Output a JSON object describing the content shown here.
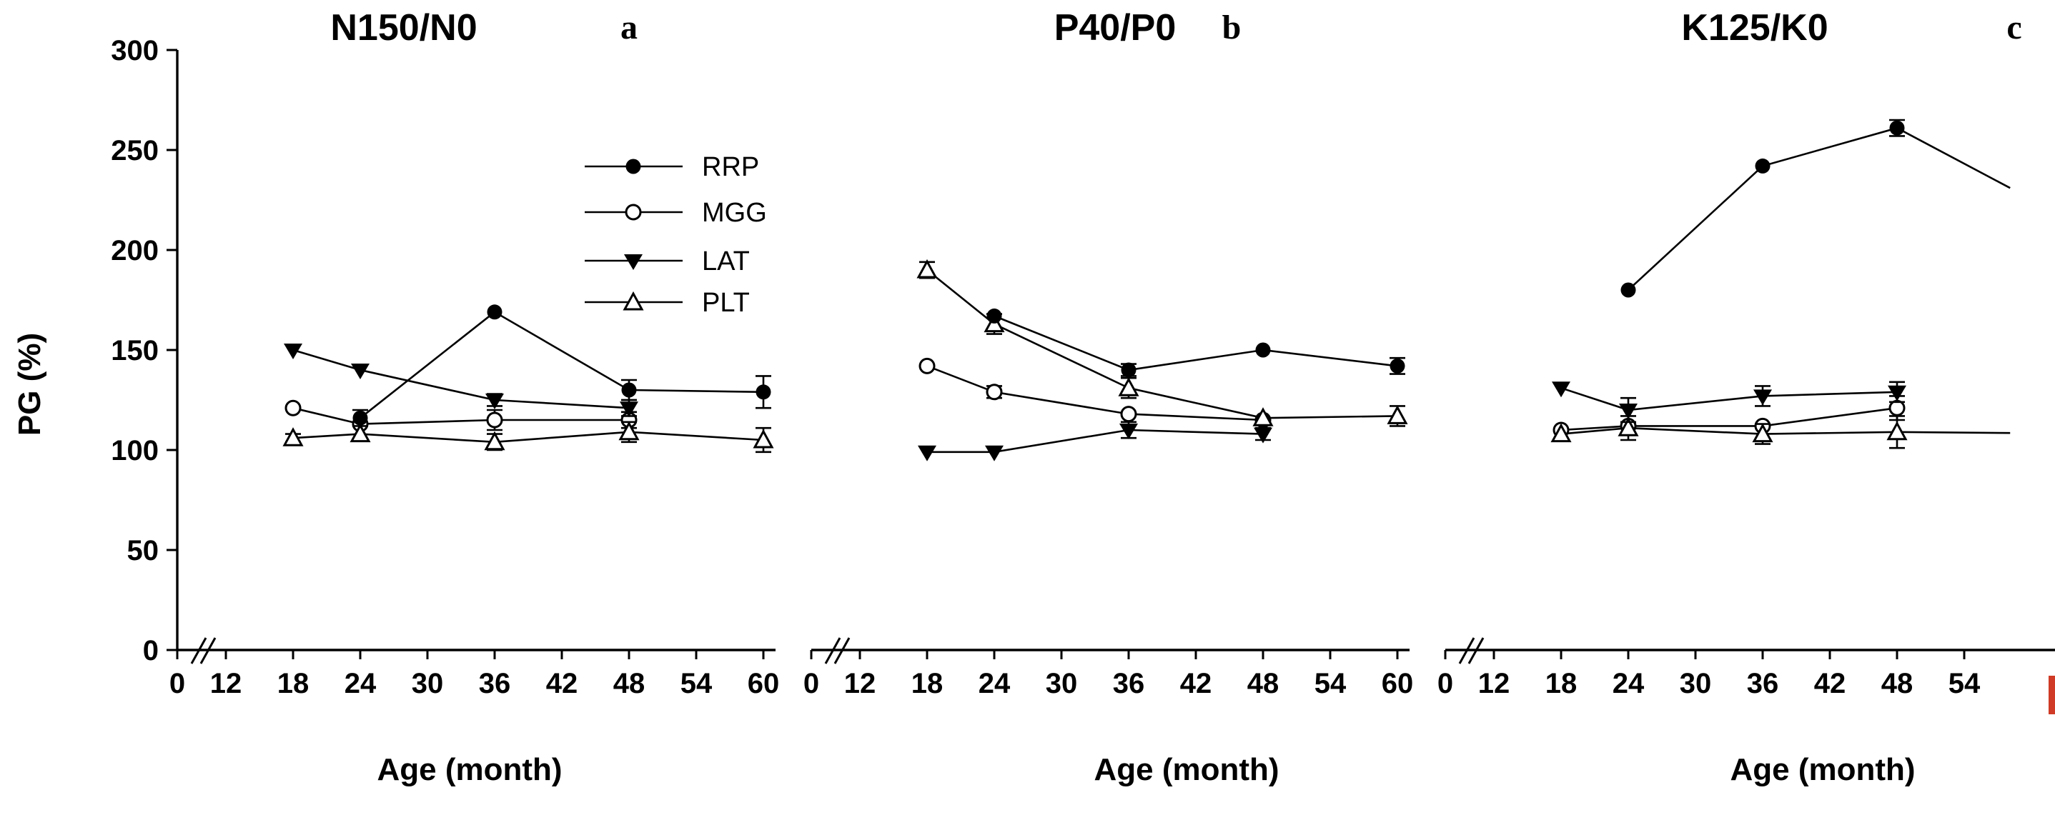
{
  "figure": {
    "background_color": "#ffffff",
    "ink_color": "#000000",
    "clipped_label_color": "#cf3b26",
    "ylabel": "PG (%)",
    "xlabel": "Age (month)"
  },
  "chart_data": {
    "type": "line",
    "ylabel": "PG (%)",
    "xlabel": "Age (month)",
    "ylim": [
      0,
      300
    ],
    "yticks": [
      0,
      50,
      100,
      150,
      200,
      250,
      300
    ],
    "xtick_labels": [
      "0",
      "12",
      "18",
      "24",
      "30",
      "36",
      "42",
      "48",
      "54",
      "60"
    ],
    "axis_break_between": [
      "0",
      "12"
    ],
    "grid": false,
    "legend_position": "upper area of first panel",
    "legend": [
      {
        "name": "RRP",
        "marker": "filled-circle"
      },
      {
        "name": "MGG",
        "marker": "open-circle"
      },
      {
        "name": "LAT",
        "marker": "filled-triangle-down"
      },
      {
        "name": "PLT",
        "marker": "open-triangle-up"
      }
    ],
    "panels": [
      {
        "title": "N150/N0",
        "letter": "a",
        "series": [
          {
            "name": "RRP",
            "x": [
              24,
              36,
              48,
              60
            ],
            "y": [
              116,
              169,
              130,
              129
            ],
            "err": [
              4,
              0,
              5,
              8
            ]
          },
          {
            "name": "MGG",
            "x": [
              18,
              24,
              36,
              48
            ],
            "y": [
              121,
              113,
              115,
              115
            ],
            "err": [
              0,
              0,
              5,
              4
            ]
          },
          {
            "name": "LAT",
            "x": [
              18,
              24,
              36,
              48
            ],
            "y": [
              150,
              140,
              125,
              121
            ],
            "err": [
              0,
              0,
              3,
              4
            ]
          },
          {
            "name": "PLT",
            "x": [
              18,
              24,
              36,
              48,
              60
            ],
            "y": [
              106,
              108,
              104,
              109,
              105
            ],
            "err": [
              2,
              0,
              4,
              5,
              6
            ]
          }
        ]
      },
      {
        "title": "P40/P0",
        "letter": "b",
        "series": [
          {
            "name": "RRP",
            "x": [
              24,
              36,
              48,
              60
            ],
            "y": [
              167,
              140,
              150,
              142
            ],
            "err": [
              0,
              3,
              0,
              4
            ]
          },
          {
            "name": "MGG",
            "x": [
              18,
              24,
              36,
              48
            ],
            "y": [
              142,
              129,
              118,
              115
            ],
            "err": [
              0,
              3,
              0,
              0
            ]
          },
          {
            "name": "LAT",
            "x": [
              18,
              24,
              36,
              48
            ],
            "y": [
              99,
              99,
              110,
              108
            ],
            "err": [
              0,
              0,
              4,
              3
            ]
          },
          {
            "name": "PLT",
            "x": [
              18,
              24,
              36,
              48,
              60
            ],
            "y": [
              190,
              163,
              131,
              116,
              117
            ],
            "err": [
              4,
              5,
              5,
              0,
              5
            ]
          }
        ]
      },
      {
        "title": "K125/K0",
        "letter": "c",
        "series": [
          {
            "name": "RRP",
            "x": [
              24,
              36,
              48
            ],
            "y": [
              180,
              242,
              261
            ],
            "err": [
              0,
              0,
              4
            ],
            "tail": {
              "x": 58.1,
              "y": 231
            }
          },
          {
            "name": "MGG",
            "x": [
              18,
              24,
              36,
              48
            ],
            "y": [
              110,
              112,
              112,
              121
            ],
            "err": [
              0,
              0,
              0,
              6
            ]
          },
          {
            "name": "LAT",
            "x": [
              18,
              24,
              36,
              48
            ],
            "y": [
              131,
              120,
              127,
              129
            ],
            "err": [
              0,
              6,
              5,
              5
            ]
          },
          {
            "name": "PLT",
            "x": [
              18,
              24,
              36,
              48
            ],
            "y": [
              108,
              111,
              108,
              109
            ],
            "err": [
              0,
              6,
              5,
              8
            ],
            "tail": {
              "x": 58.1,
              "y": 108.5
            }
          }
        ],
        "note": "x tick label 60 clipped at image edge (red sliver)"
      }
    ]
  }
}
